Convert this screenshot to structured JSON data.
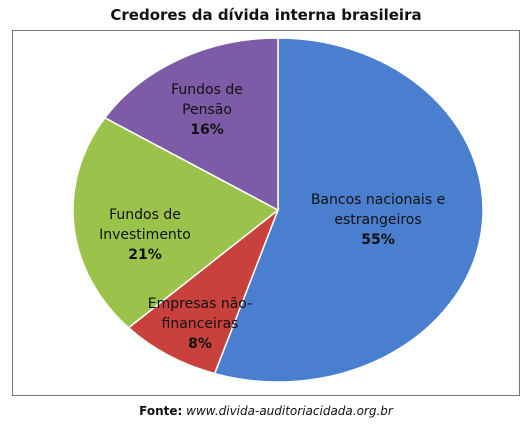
{
  "chart_data": {
    "type": "pie",
    "title": "Credores da dívida interna brasileira",
    "categories": [
      "Bancos nacionais e estrangeiros",
      "Empresas não-financeiras",
      "Fundos de Investimento",
      "Fundos de Pensão"
    ],
    "values": [
      55,
      8,
      21,
      16
    ],
    "value_labels": [
      "55%",
      "8%",
      "21%",
      "16%"
    ],
    "colors": [
      "#4a7fcf",
      "#c8413c",
      "#9bc24a",
      "#7d5ba6"
    ]
  },
  "source_label": "Fonte:",
  "source": "www.divida-auditoriacidada.org.br"
}
